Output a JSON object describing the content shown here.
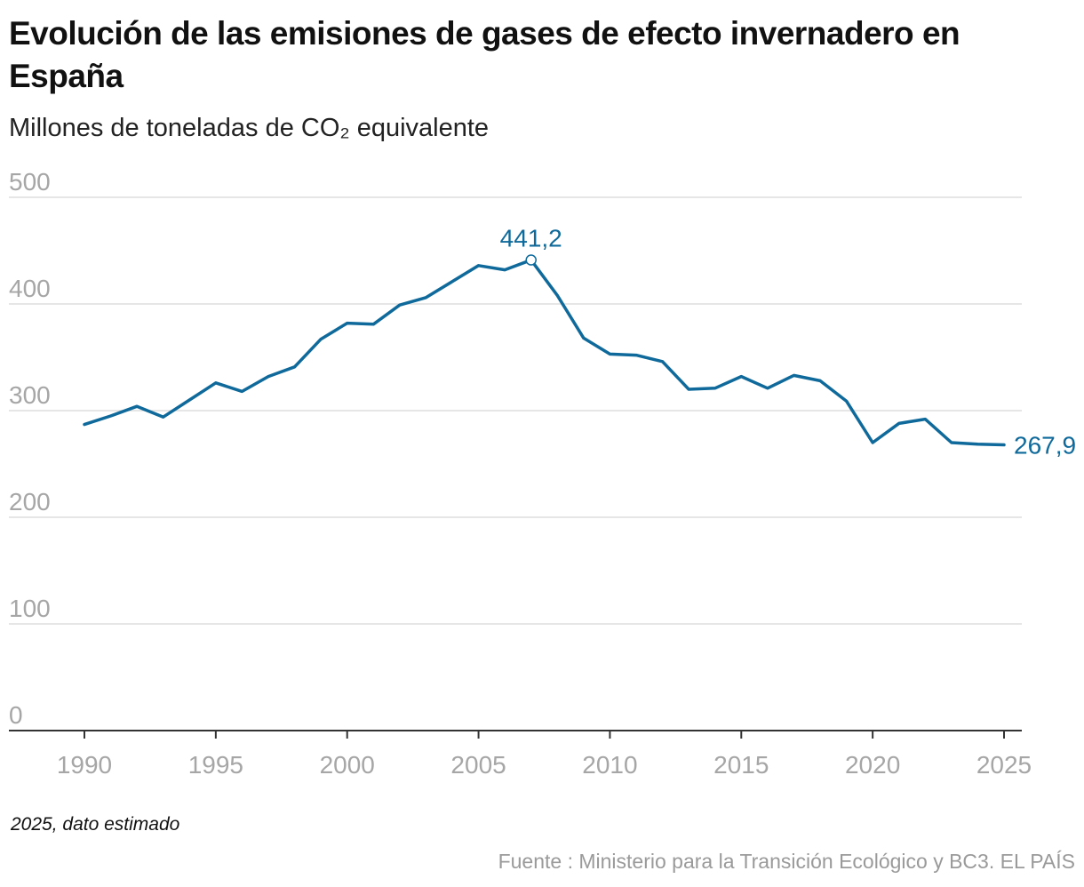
{
  "title": "Evolución de las emisiones de gases de efecto invernadero en España",
  "subtitle": "Millones de toneladas de CO₂ equivalente",
  "footnote": "2025, dato estimado",
  "source": "Fuente : Ministerio para la Transición Ecológico y BC3. EL PAÍS",
  "colors": {
    "line": "#0f6a9b",
    "grid": "#dedede",
    "tick_label": "#a6a6a6",
    "axis": "#333333"
  },
  "chart_data": {
    "type": "line",
    "title": "Evolución de las emisiones de gases de efecto invernadero en España",
    "subtitle": "Millones de toneladas de CO₂ equivalente",
    "xlabel": "",
    "ylabel": "",
    "xlim": [
      1990,
      2025
    ],
    "ylim": [
      0,
      500
    ],
    "x_ticks": [
      "1990",
      "1995",
      "2000",
      "2005",
      "2010",
      "2015",
      "2020",
      "2025"
    ],
    "y_ticks": [
      "0",
      "100",
      "200",
      "300",
      "400",
      "500"
    ],
    "grid": "horizontal",
    "x": [
      1990,
      1991,
      1992,
      1993,
      1994,
      1995,
      1996,
      1997,
      1998,
      1999,
      2000,
      2001,
      2002,
      2003,
      2004,
      2005,
      2006,
      2007,
      2008,
      2009,
      2010,
      2011,
      2012,
      2013,
      2014,
      2015,
      2016,
      2017,
      2018,
      2019,
      2020,
      2021,
      2022,
      2023,
      2024,
      2025
    ],
    "series": [
      {
        "values": [
          287,
          295,
          304,
          294,
          310,
          326,
          318,
          332,
          341,
          367,
          382,
          381,
          399,
          406,
          421,
          436,
          432,
          441.2,
          408,
          368,
          353,
          352,
          346,
          320,
          321,
          332,
          321,
          333,
          328,
          309,
          270,
          288,
          292,
          270,
          268.5,
          267.9
        ]
      }
    ],
    "annotations": [
      {
        "label": "441,2",
        "x": 2007,
        "y": 441.2
      },
      {
        "label": "267,9",
        "x": 2025,
        "y": 267.9
      }
    ]
  }
}
